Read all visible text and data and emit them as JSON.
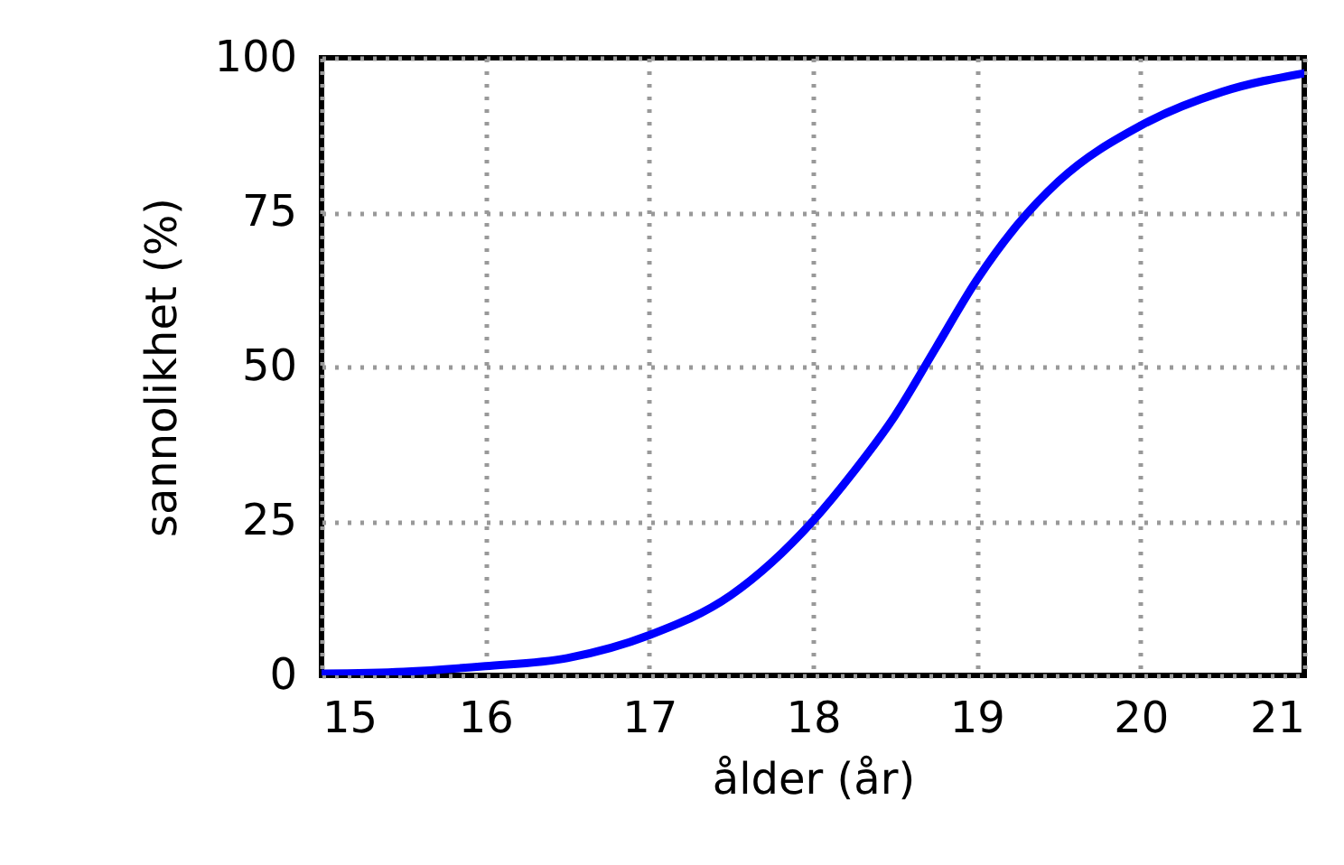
{
  "chart_data": {
    "type": "line",
    "xlabel": "ålder (år)",
    "ylabel": "sannolikhet (%)",
    "x": [
      15,
      15.5,
      16,
      16.5,
      17,
      17.5,
      18,
      18.25,
      18.5,
      18.75,
      19,
      19.25,
      19.5,
      20,
      20.5,
      21
    ],
    "series": [
      {
        "color": "#0000ff",
        "values": [
          0.3,
          0.6,
          1.5,
          2.8,
          6.5,
          13,
          25,
          33,
          42,
          53,
          64,
          73,
          80,
          89,
          94.5,
          97.5
        ]
      }
    ],
    "xlim": [
      15,
      21
    ],
    "xticks": [
      15,
      16,
      17,
      18,
      19,
      20,
      21
    ],
    "ylim": [
      0,
      100
    ],
    "yticks": [
      0,
      25,
      50,
      75,
      100
    ],
    "grid": true,
    "marker": "none",
    "line_style": "solid"
  }
}
